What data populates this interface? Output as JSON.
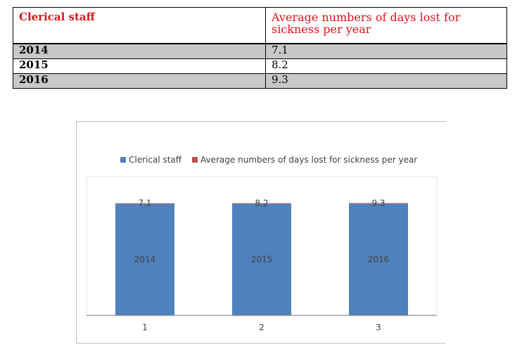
{
  "table": {
    "headers": [
      "Clerical staff",
      "Average numbers of days lost for sickness per year"
    ],
    "rows": [
      {
        "year": "2014",
        "days": "7.1"
      },
      {
        "year": "2015",
        "days": "8.2"
      },
      {
        "year": "2016",
        "days": "9.3"
      }
    ]
  },
  "chart_data": {
    "type": "bar",
    "stacked": true,
    "categories": [
      "1",
      "2",
      "3"
    ],
    "series": [
      {
        "name": "Clerical staff",
        "values": [
          2014,
          2015,
          2016
        ],
        "color": "#4f81bd"
      },
      {
        "name": "Average numbers of days lost for sickness per year",
        "values": [
          7.1,
          8.2,
          9.3
        ],
        "color": "#c0504d"
      }
    ],
    "data_labels": {
      "Clerical staff": [
        "2014",
        "2015",
        "2016"
      ],
      "Average numbers of days lost for sickness per year": [
        "7.1",
        "8.2",
        "9.3"
      ]
    },
    "ylim": [
      0,
      2500
    ],
    "grid": false,
    "legend": "top"
  }
}
